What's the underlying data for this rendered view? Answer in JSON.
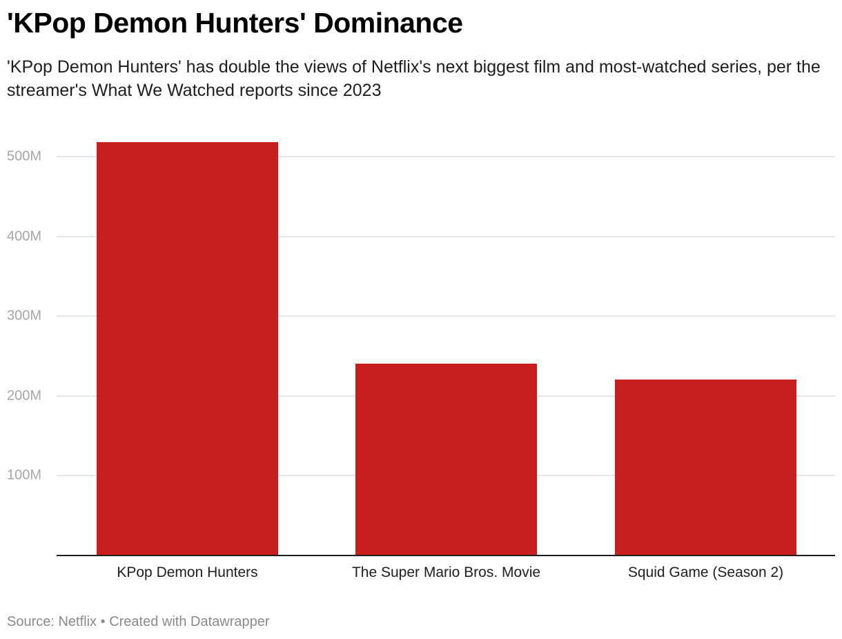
{
  "title": "'KPop Demon Hunters' Dominance",
  "subtitle": "'KPop Demon Hunters' has double the views of Netflix's next biggest film and most-watched series, per the streamer's What We Watched reports since 2023",
  "footer": {
    "source": "Source: Netflix",
    "separator": "•",
    "credit": "Created with Datawrapper"
  },
  "colors": {
    "bar": "#c81e1e",
    "grid": "#e6e6e6",
    "tick_label": "#a6a6a6",
    "baseline": "#1d1d1d"
  },
  "y_ticks": [
    {
      "label": "100M",
      "value": 100
    },
    {
      "label": "200M",
      "value": 200
    },
    {
      "label": "300M",
      "value": 300
    },
    {
      "label": "400M",
      "value": 400
    },
    {
      "label": "500M",
      "value": 500
    }
  ],
  "chart_data": {
    "type": "bar",
    "title": "'KPop Demon Hunters' Dominance",
    "subtitle": "'KPop Demon Hunters' has double the views of Netflix's next biggest film and most-watched series, per the streamer's What We Watched reports since 2023",
    "categories": [
      "KPop Demon Hunters",
      "The Super Mario Bros. Movie",
      "Squid Game (Season 2)"
    ],
    "values": [
      518,
      240.5,
      220.5
    ],
    "units": "millions of views",
    "xlabel": "",
    "ylabel": "",
    "ylim": [
      0,
      520
    ],
    "yticks": [
      100,
      200,
      300,
      400,
      500
    ],
    "ytick_labels": [
      "100M",
      "200M",
      "300M",
      "400M",
      "500M"
    ],
    "grid": true,
    "legend": null,
    "source": "Source: Netflix • Created with Datawrapper"
  }
}
